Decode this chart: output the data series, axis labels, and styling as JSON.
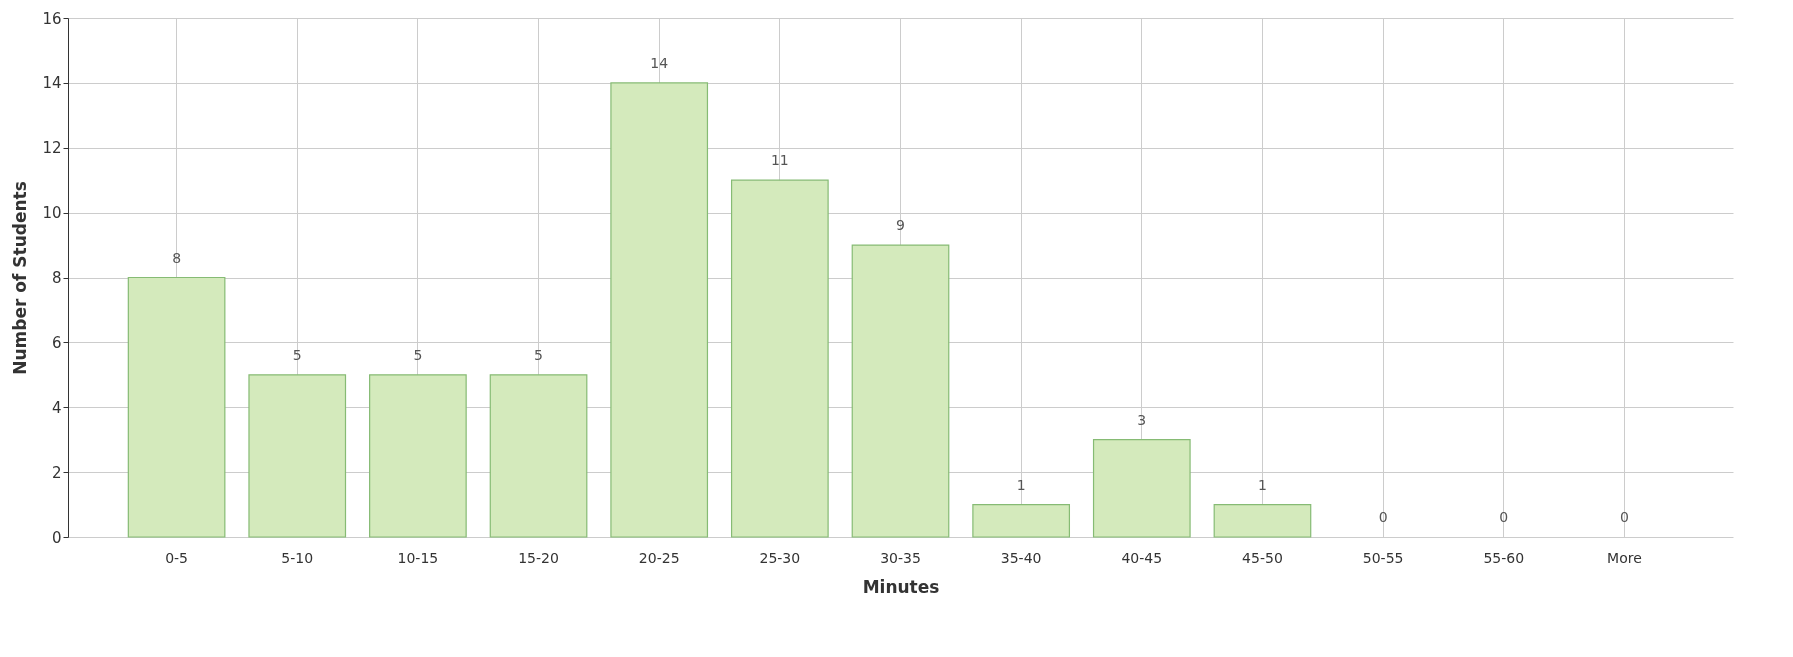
{
  "chart_data": {
    "type": "bar",
    "xlabel": "Minutes",
    "ylabel": "Number of Students",
    "categories": [
      "0-5",
      "5-10",
      "10-15",
      "15-20",
      "20-25",
      "25-30",
      "30-35",
      "35-40",
      "40-45",
      "45-50",
      "50-55",
      "55-60",
      "More"
    ],
    "values": [
      8,
      5,
      5,
      5,
      14,
      11,
      9,
      1,
      3,
      1,
      0,
      0,
      0
    ],
    "color": "#d4eabc",
    "ylim": [
      0,
      16
    ],
    "yticks": [
      0,
      2,
      4,
      6,
      8,
      10,
      12,
      14,
      16
    ],
    "grid": true,
    "data_labels": true
  }
}
